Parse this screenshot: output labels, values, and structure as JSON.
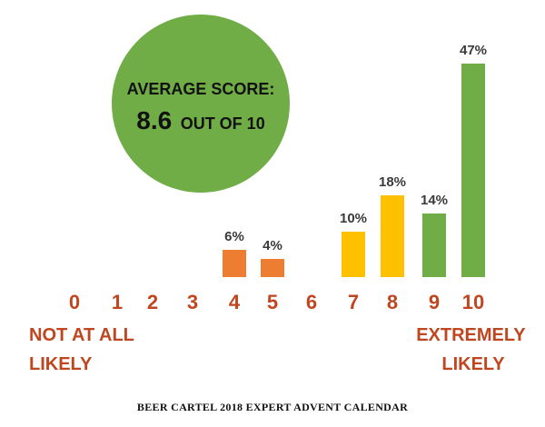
{
  "chart_data": {
    "type": "bar",
    "categories": [
      "0",
      "1",
      "2",
      "3",
      "4",
      "5",
      "6",
      "7",
      "8",
      "9",
      "10"
    ],
    "values": [
      0,
      0,
      0,
      0,
      6,
      4,
      0,
      10,
      18,
      14,
      47
    ],
    "data_labels": [
      "",
      "",
      "",
      "",
      "6%",
      "4%",
      "",
      "10%",
      "18%",
      "14%",
      "47%"
    ],
    "ylim": [
      0,
      47
    ],
    "grid": false,
    "legend": "none",
    "low_label": [
      "NOT AT ALL",
      "LIKELY"
    ],
    "high_label": [
      "EXTREMELY",
      "LIKELY"
    ],
    "annotation": {
      "title": "AVERAGE SCORE:",
      "value": "8.6",
      "suffix": "OUT OF 10"
    },
    "footer": "BEER CARTEL 2018 EXPERT ADVENT CALENDAR"
  },
  "colors": {
    "detractor": "#ed7d31",
    "passive": "#ffc000",
    "promoter": "#70ad47",
    "tick": "#c0461f",
    "bubble": "#70ad47"
  }
}
